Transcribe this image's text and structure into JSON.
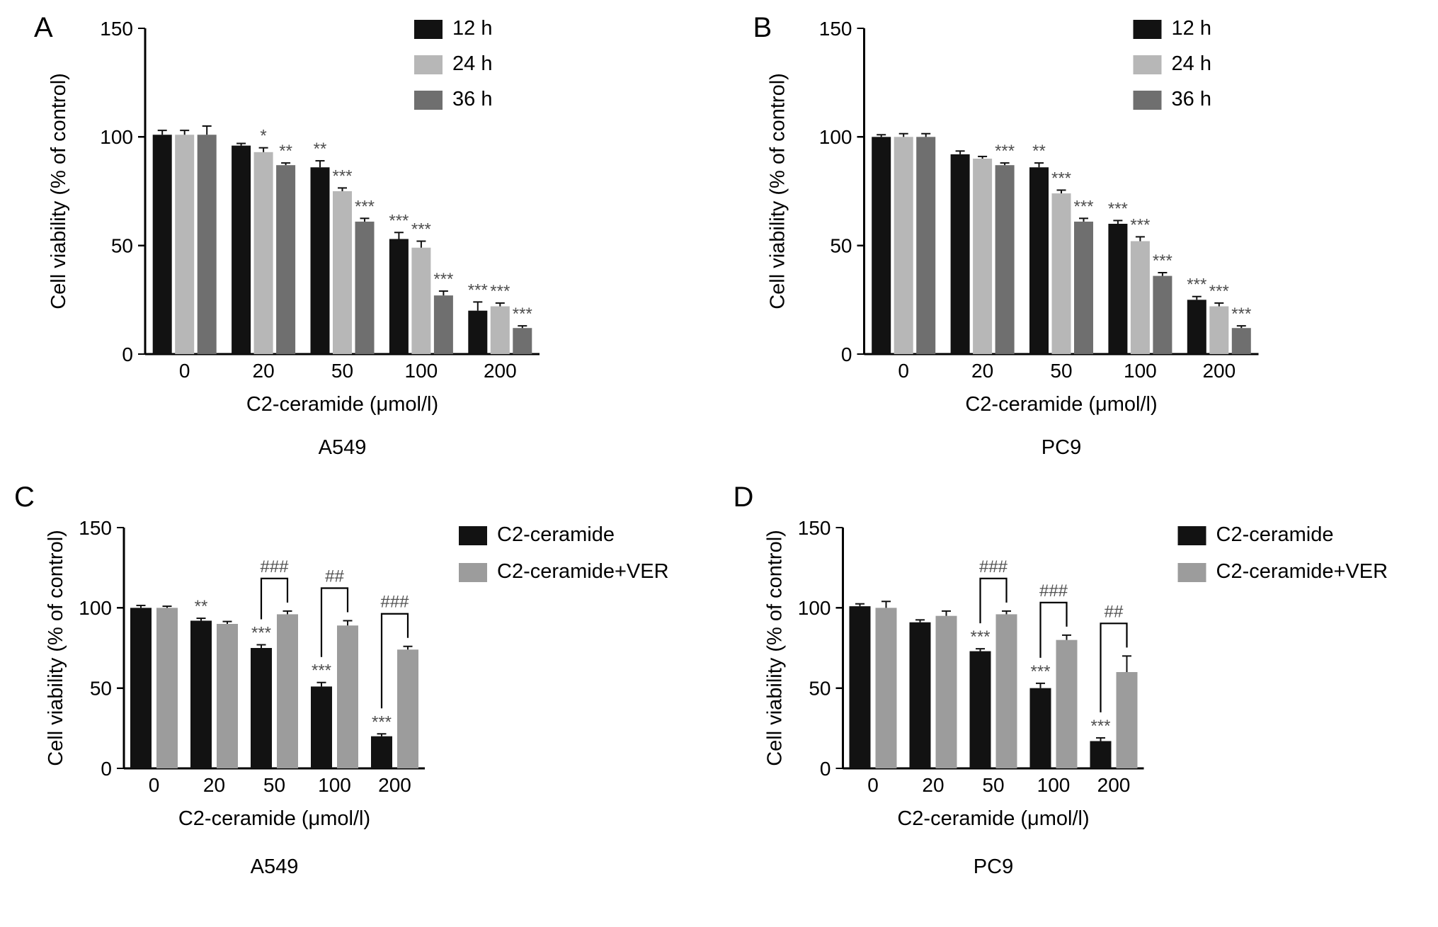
{
  "figure": {
    "background": "#ffffff",
    "colors": {
      "axis": "#000000",
      "annotation": "#4f4f4f",
      "error_bar": "#111111",
      "series_12h": "#121212",
      "series_24h": "#b7b7b7",
      "series_36h": "#6f6f6f",
      "series_c2": "#121212",
      "series_c2ver": "#9c9c9c"
    }
  },
  "chart_data": [
    {
      "id": "A",
      "type": "bar",
      "panel_label": "A",
      "title": "A549",
      "xlabel": "C2-ceramide (μmol/l)",
      "ylabel": "Cell viability (% of control)",
      "ylim": [
        0,
        150
      ],
      "yticks": [
        0,
        50,
        100,
        150
      ],
      "categories": [
        "0",
        "20",
        "50",
        "100",
        "200"
      ],
      "legend_position": "top-right",
      "grid": false,
      "series": [
        {
          "name": "12 h",
          "color_key": "series_12h",
          "values": [
            101,
            96,
            86,
            53,
            20
          ],
          "errors": [
            2,
            1,
            3,
            3,
            4
          ],
          "sig": [
            "",
            "",
            "**",
            "***",
            "***"
          ]
        },
        {
          "name": "24 h",
          "color_key": "series_24h",
          "values": [
            101,
            93,
            75,
            49,
            22
          ],
          "errors": [
            2,
            2,
            1.5,
            3,
            1.5
          ],
          "sig": [
            "",
            "*",
            "***",
            "***",
            "***"
          ]
        },
        {
          "name": "36 h",
          "color_key": "series_36h",
          "values": [
            101,
            87,
            61,
            27,
            12
          ],
          "errors": [
            4,
            1,
            1.5,
            2,
            1
          ],
          "sig": [
            "",
            "**",
            "***",
            "***",
            "***"
          ]
        }
      ]
    },
    {
      "id": "B",
      "type": "bar",
      "panel_label": "B",
      "title": "PC9",
      "xlabel": "C2-ceramide (μmol/l)",
      "ylabel": "Cell viability (% of control)",
      "ylim": [
        0,
        150
      ],
      "yticks": [
        0,
        50,
        100,
        150
      ],
      "categories": [
        "0",
        "20",
        "50",
        "100",
        "200"
      ],
      "legend_position": "top-right",
      "grid": false,
      "series": [
        {
          "name": "12 h",
          "color_key": "series_12h",
          "values": [
            100,
            92,
            86,
            60,
            25
          ],
          "errors": [
            1,
            1.5,
            2,
            1.5,
            1.5
          ],
          "sig": [
            "",
            "",
            "**",
            "***",
            "***"
          ]
        },
        {
          "name": "24 h",
          "color_key": "series_24h",
          "values": [
            100,
            90,
            74,
            52,
            22
          ],
          "errors": [
            1.5,
            1,
            1.5,
            2,
            1.5
          ],
          "sig": [
            "",
            "",
            "***",
            "***",
            "***"
          ]
        },
        {
          "name": "36 h",
          "color_key": "series_36h",
          "values": [
            100,
            87,
            61,
            36,
            12
          ],
          "errors": [
            1.5,
            1,
            1.5,
            1.5,
            1
          ],
          "sig": [
            "",
            "***",
            "***",
            "***",
            "***"
          ]
        }
      ]
    },
    {
      "id": "C",
      "type": "bar",
      "panel_label": "C",
      "title": "A549",
      "xlabel": "C2-ceramide (μmol/l)",
      "ylabel": "Cell viability (% of control)",
      "ylim": [
        0,
        150
      ],
      "yticks": [
        0,
        50,
        100,
        150
      ],
      "categories": [
        "0",
        "20",
        "50",
        "100",
        "200"
      ],
      "legend_position": "top-right-outside",
      "grid": false,
      "series": [
        {
          "name": "C2-ceramide",
          "color_key": "series_c2",
          "values": [
            100,
            92,
            75,
            51,
            20
          ],
          "errors": [
            1.5,
            1.5,
            2,
            2.5,
            1.5
          ],
          "sig": [
            "",
            "**",
            "***",
            "***",
            "***"
          ]
        },
        {
          "name": "C2-ceramide+VER",
          "color_key": "series_c2ver",
          "values": [
            100,
            90,
            96,
            89,
            74
          ],
          "errors": [
            1,
            1.5,
            2,
            3,
            2
          ],
          "sig": [
            "",
            "",
            "",
            "",
            ""
          ]
        }
      ],
      "brackets": [
        {
          "cat": 2,
          "label": "###"
        },
        {
          "cat": 3,
          "label": "##"
        },
        {
          "cat": 4,
          "label": "###"
        }
      ]
    },
    {
      "id": "D",
      "type": "bar",
      "panel_label": "D",
      "title": "PC9",
      "xlabel": "C2-ceramide (μmol/l)",
      "ylabel": "Cell viability (% of control)",
      "ylim": [
        0,
        150
      ],
      "yticks": [
        0,
        50,
        100,
        150
      ],
      "categories": [
        "0",
        "20",
        "50",
        "100",
        "200"
      ],
      "legend_position": "top-right-outside",
      "grid": false,
      "series": [
        {
          "name": "C2-ceramide",
          "color_key": "series_c2",
          "values": [
            101,
            91,
            73,
            50,
            17
          ],
          "errors": [
            1.5,
            1.5,
            1.5,
            3,
            2
          ],
          "sig": [
            "",
            "",
            "***",
            "***",
            "***"
          ]
        },
        {
          "name": "C2-ceramide+VER",
          "color_key": "series_c2ver",
          "values": [
            100,
            95,
            96,
            80,
            60
          ],
          "errors": [
            4,
            3,
            2,
            3,
            10
          ],
          "sig": [
            "",
            "",
            "",
            "",
            ""
          ]
        }
      ],
      "brackets": [
        {
          "cat": 2,
          "label": "###"
        },
        {
          "cat": 3,
          "label": "###"
        },
        {
          "cat": 4,
          "label": "##"
        }
      ]
    }
  ]
}
